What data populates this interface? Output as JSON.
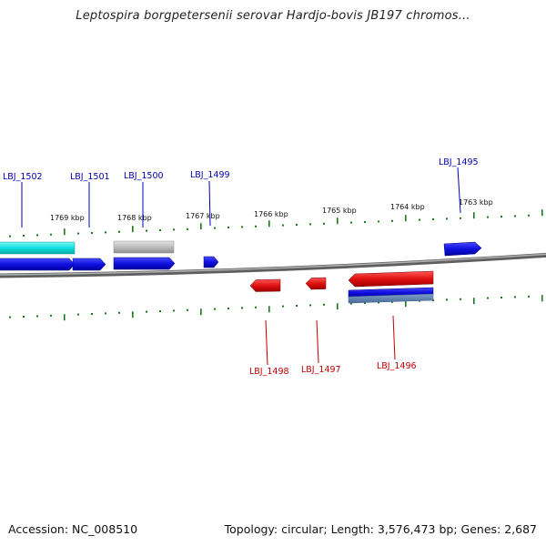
{
  "title": "Leptospira borgpetersenii serovar Hardjo-bovis JB197 chromos...",
  "colors": {
    "forward_gene": "#1010e0",
    "reverse_gene": "#e01010",
    "cyan_feature": "#10e0e0",
    "gray_feature": "#bdbdbd",
    "tick": "#1a7a1a",
    "backbone": "#8a8a8a",
    "forward_label": "#0000b0",
    "reverse_label": "#c00000"
  },
  "ticks": [
    {
      "label": "1769 kbp"
    },
    {
      "label": "1768 kbp"
    },
    {
      "label": "1767 kbp"
    },
    {
      "label": "1766 kbp"
    },
    {
      "label": "1765 kbp"
    },
    {
      "label": "1764 kbp"
    },
    {
      "label": "1763 kbp"
    }
  ],
  "forward_genes": [
    {
      "label": "LBJ_1502"
    },
    {
      "label": "LBJ_1501"
    },
    {
      "label": "LBJ_1500"
    },
    {
      "label": "LBJ_1499"
    },
    {
      "label": "LBJ_1495"
    }
  ],
  "reverse_genes": [
    {
      "label": "LBJ_1498"
    },
    {
      "label": "LBJ_1497"
    },
    {
      "label": "LBJ_1496"
    }
  ],
  "footer": {
    "accession": "Accession: NC_008510",
    "stats": "Topology: circular; Length: 3,576,473 bp; Genes: 2,687"
  }
}
